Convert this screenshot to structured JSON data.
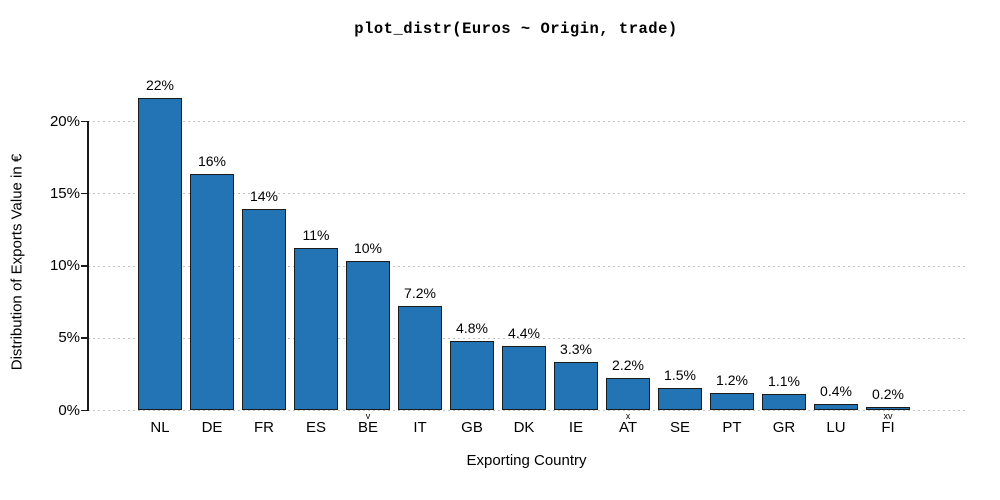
{
  "accent_colors": {
    "bar_fill": "#2374b5",
    "bar_edge": "#1a1a1a",
    "gridline": "#c4c4c4",
    "axis": "#1a1a1a",
    "background": "#ffffff"
  },
  "chart_data": {
    "type": "bar",
    "title": "plot_distr(Euros ~ Origin, trade)",
    "xlabel": "Exporting Country",
    "ylabel": "Distribution of Exports Value in €",
    "categories": [
      "NL",
      "DE",
      "FR",
      "ES",
      "BE",
      "IT",
      "GB",
      "DK",
      "IE",
      "AT",
      "SE",
      "PT",
      "GR",
      "LU",
      "FI"
    ],
    "values": [
      21.6,
      16.3,
      13.9,
      11.2,
      10.3,
      7.2,
      4.8,
      4.4,
      3.3,
      2.2,
      1.5,
      1.2,
      1.1,
      0.4,
      0.2
    ],
    "bar_labels": [
      "22%",
      "16%",
      "14%",
      "11%",
      "10%",
      "7.2%",
      "4.8%",
      "4.4%",
      "3.3%",
      "2.2%",
      "1.5%",
      "1.2%",
      "1.1%",
      "0.4%",
      "0.2%"
    ],
    "category_superscripts": [
      "",
      "",
      "",
      "",
      "v",
      "",
      "",
      "",
      "",
      "x",
      "",
      "",
      "",
      "",
      "xv"
    ],
    "yticks": [
      0,
      5,
      10,
      15,
      20
    ],
    "ytick_labels": [
      "0%",
      "5%",
      "10%",
      "15%",
      "20%"
    ],
    "ylim": [
      0,
      23
    ],
    "grid": "horizontal-dotted",
    "legend": "none"
  }
}
